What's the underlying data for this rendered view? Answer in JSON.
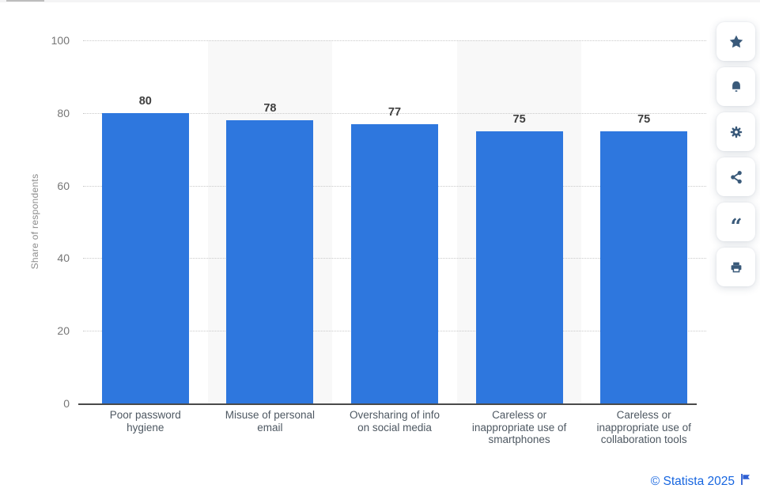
{
  "chart_data": {
    "type": "bar",
    "title": "",
    "categories": [
      "Poor password hygiene",
      "Misuse of personal email",
      "Oversharing of info on social media",
      "Careless or inappropriate use of smartphones",
      "Careless or inappropriate use of collaboration tools"
    ],
    "values": [
      80,
      78,
      77,
      75,
      75
    ],
    "xlabel": "",
    "ylabel": "Share of respondents",
    "ylim": [
      0,
      100
    ],
    "yticks": [
      0,
      20,
      40,
      60,
      80,
      100
    ],
    "grid": "horizontal-dotted",
    "legend": "none",
    "value_labels_shown": true,
    "bar_color": "#2e77de",
    "band_color": "#f8f8f8",
    "gridline_color": "#c9c9c9",
    "axis_line_color": "#4a4a4a"
  },
  "toolbar": {
    "icon_color": "#3a5a7a",
    "buttons": [
      {
        "icon": "star-icon"
      },
      {
        "icon": "bell-icon"
      },
      {
        "icon": "gear-icon"
      },
      {
        "icon": "share-icon"
      },
      {
        "icon": "quote-icon"
      },
      {
        "icon": "printer-icon"
      }
    ]
  },
  "footer": {
    "copyright": "© Statista 2025",
    "flag_icon": "flag-icon",
    "color": "#1766e0"
  }
}
